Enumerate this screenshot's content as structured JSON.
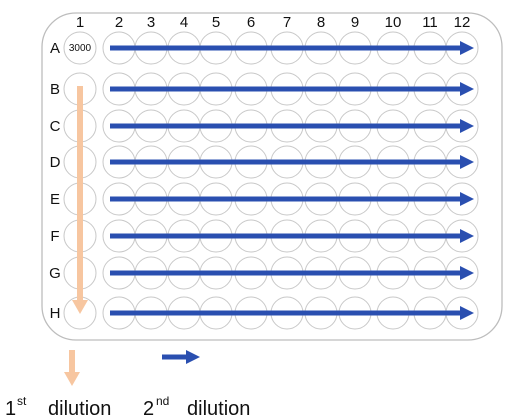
{
  "plate": {
    "column_labels": [
      "1",
      "2",
      "3",
      "4",
      "5",
      "6",
      "7",
      "8",
      "9",
      "10",
      "11",
      "12"
    ],
    "row_labels": [
      "A",
      "B",
      "C",
      "D",
      "E",
      "F",
      "G",
      "H"
    ],
    "well_a1_value": "3000"
  },
  "legend": {
    "first_number": "1",
    "first_suffix": "st",
    "first_text": "dilution",
    "second_number": "2",
    "second_suffix": "nd",
    "second_text": "dilution"
  },
  "colors": {
    "first_dilution_arrow": "#F7C6A0",
    "second_dilution_arrow": "#2A4FB0",
    "well_outline": "#C8C8C8",
    "plate_outline": "#BDBDBD"
  }
}
